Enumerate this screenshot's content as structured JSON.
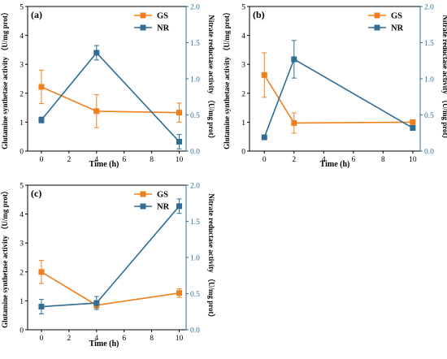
{
  "colors": {
    "gs": "#f07f1e",
    "nr": "#2f6d94",
    "axis": "#000000"
  },
  "legend": {
    "gs_label": "GS",
    "nr_label": "NR"
  },
  "axis_titles": {
    "left": "Glutamine synthetase activity （U/mg prot）",
    "right": "Nitrate reductase activity （U/mg prot）",
    "x": "Time (h)"
  },
  "chart_data": [
    {
      "panel": "(a)",
      "type": "line",
      "x": [
        0,
        4,
        10
      ],
      "xlim": [
        -1,
        10.5
      ],
      "xticks": [
        0,
        2,
        4,
        6,
        8,
        10
      ],
      "ylim_left": [
        0,
        5
      ],
      "yticks_left": [
        0,
        1,
        2,
        3,
        4,
        5
      ],
      "ylim_right": [
        0,
        2.0
      ],
      "yticks_right": [
        "0.0",
        "0.5",
        "1.0",
        "1.5",
        "2.0"
      ],
      "legend_position": "top-right",
      "series": [
        {
          "name": "GS",
          "axis": "left",
          "values": [
            2.22,
            1.38,
            1.33
          ],
          "errors": [
            0.58,
            0.57,
            0.33
          ],
          "marker": "square"
        },
        {
          "name": "NR",
          "axis": "right",
          "values": [
            0.43,
            1.36,
            0.13
          ],
          "errors": [
            0.04,
            0.1,
            0.1
          ],
          "marker": "square"
        }
      ]
    },
    {
      "panel": "(b)",
      "type": "line",
      "x": [
        0,
        2,
        10
      ],
      "xlim": [
        -1,
        10.5
      ],
      "xticks": [
        0,
        2,
        4,
        6,
        8,
        10
      ],
      "ylim_left": [
        0,
        5
      ],
      "yticks_left": [
        0,
        1,
        2,
        3,
        4,
        5
      ],
      "ylim_right": [
        0,
        2.0
      ],
      "yticks_right": [
        "0.0",
        "0.5",
        "1.0",
        "1.5",
        "2.0"
      ],
      "legend_position": "top-right",
      "series": [
        {
          "name": "GS",
          "axis": "left",
          "values": [
            2.63,
            0.97,
            1.0
          ],
          "errors": [
            0.77,
            0.35,
            0.05
          ],
          "marker": "square"
        },
        {
          "name": "NR",
          "axis": "right",
          "values": [
            0.19,
            1.27,
            0.32
          ],
          "errors": [
            0.02,
            0.26,
            0.02
          ],
          "marker": "square"
        }
      ]
    },
    {
      "panel": "(c)",
      "type": "line",
      "x": [
        0,
        4,
        10
      ],
      "xlim": [
        -1,
        10.5
      ],
      "xticks": [
        0,
        2,
        4,
        6,
        8,
        10
      ],
      "ylim_left": [
        0,
        5
      ],
      "yticks_left": [
        0,
        1,
        2,
        3,
        4,
        5
      ],
      "ylim_right": [
        0,
        2.0
      ],
      "yticks_right": [
        "0.0",
        "0.5",
        "1.0",
        "1.5",
        "2.0"
      ],
      "legend_position": "top-right",
      "series": [
        {
          "name": "GS",
          "axis": "left",
          "values": [
            2.0,
            0.85,
            1.27
          ],
          "errors": [
            0.4,
            0.1,
            0.15
          ],
          "marker": "square"
        },
        {
          "name": "NR",
          "axis": "right",
          "values": [
            0.32,
            0.37,
            1.71
          ],
          "errors": [
            0.1,
            0.09,
            0.1
          ],
          "marker": "square"
        }
      ]
    }
  ]
}
